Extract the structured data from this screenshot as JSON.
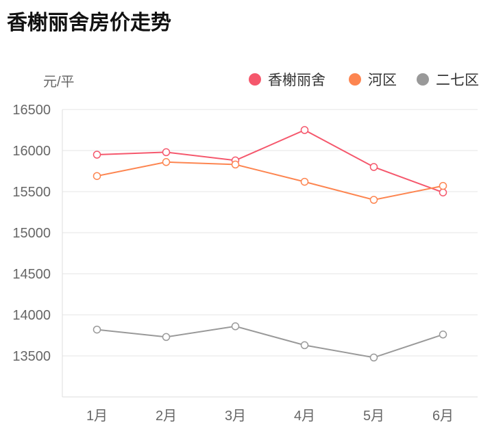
{
  "title": "香榭丽舍房价走势",
  "chart_data": {
    "type": "line",
    "title": "香榭丽舍房价走势",
    "ylabel": "元/平",
    "xlabel": "",
    "categories": [
      "1月",
      "2月",
      "3月",
      "4月",
      "5月",
      "6月"
    ],
    "ylim": [
      13000,
      16500
    ],
    "yticks": [
      13500,
      14000,
      14500,
      15000,
      15500,
      16000,
      16500
    ],
    "grid": true,
    "legend_position": "top-right",
    "series": [
      {
        "name": "香榭丽舍",
        "color": "#f5576c",
        "values": [
          15950,
          15980,
          15880,
          16250,
          15800,
          15490
        ]
      },
      {
        "name": "河区",
        "color": "#fd8550",
        "values": [
          15690,
          15860,
          15830,
          15620,
          15400,
          15570
        ]
      },
      {
        "name": "二七区",
        "color": "#999999",
        "values": [
          13820,
          13730,
          13860,
          13630,
          13480,
          13760
        ]
      }
    ]
  }
}
